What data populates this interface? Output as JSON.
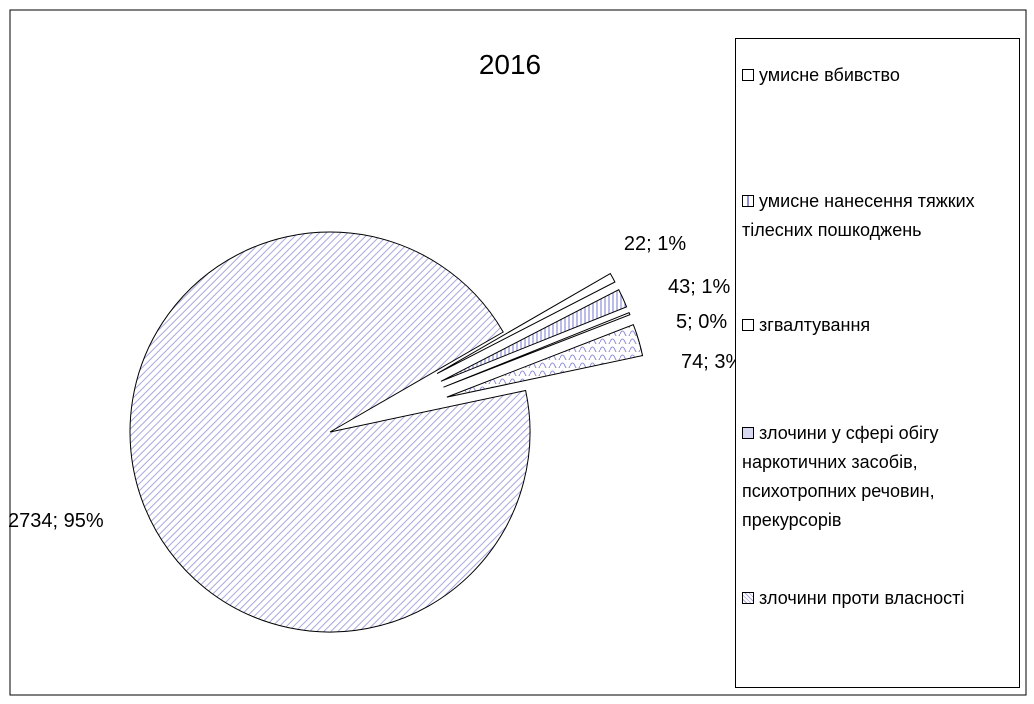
{
  "chart_data": {
    "type": "pie",
    "title": "2016",
    "categories": [
      "умисне вбивство",
      "умисне нанесення тяжких тілесних пошкоджень",
      "згвалтування",
      "злочини у сфері обігу наркотичних засобів, психотропних речовин, прекурсорів",
      "злочини проти власності"
    ],
    "values": [
      22,
      43,
      5,
      74,
      2734
    ],
    "value_labels": [
      "22; 1%",
      "43; 1%",
      "5; 0%",
      "74; 3%",
      "2734; 95%"
    ]
  }
}
